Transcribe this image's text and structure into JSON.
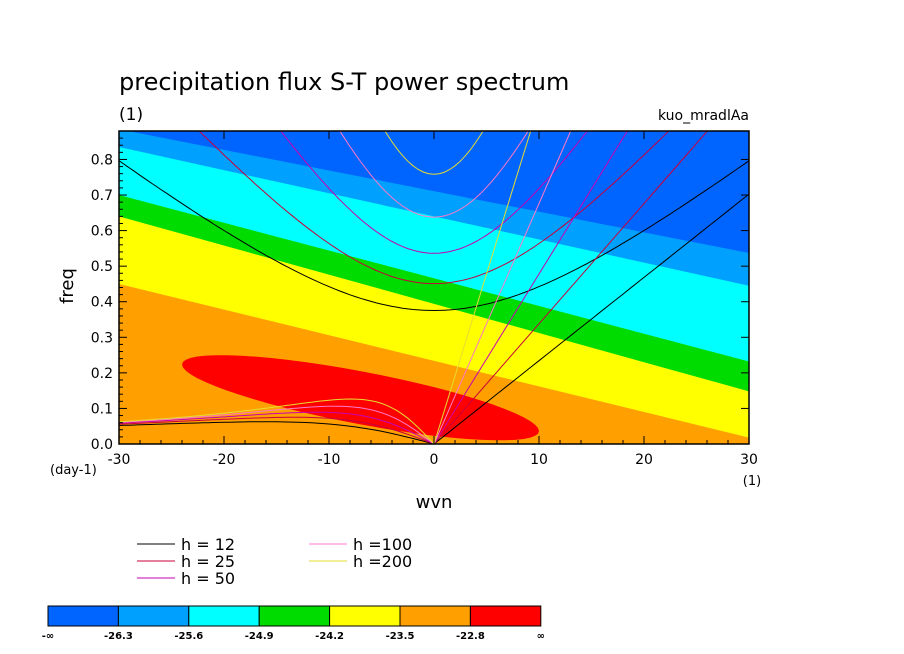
{
  "chart_data": {
    "type": "heatmap",
    "title": "precipitation flux S-T power spectrum",
    "title_unit": "(1)",
    "run_label": "kuo_mradlAa",
    "xlabel": "wvn",
    "ylabel": "freq",
    "x_unit": "(1)",
    "y_unit": "(day-1)",
    "xlim": [
      -30,
      30
    ],
    "ylim": [
      0,
      0.88
    ],
    "x_ticks": [
      -30,
      -20,
      -10,
      0,
      10,
      20,
      30
    ],
    "x_tick_labels": [
      "-30",
      "-20",
      "-10",
      "0",
      "10",
      "20",
      "30"
    ],
    "y_ticks": [
      0.0,
      0.1,
      0.2,
      0.3,
      0.4,
      0.5,
      0.6,
      0.7,
      0.8
    ],
    "y_tick_labels": [
      "0.0",
      "0.1",
      "0.2",
      "0.3",
      "0.4",
      "0.5",
      "0.6",
      "0.7",
      "0.8"
    ],
    "color_levels": [
      -26.3,
      -25.6,
      -24.9,
      -24.2,
      -23.5,
      -22.8
    ],
    "colorbar_labels": [
      "-∞",
      "-26.3",
      "-25.6",
      "-24.9",
      "-24.2",
      "-23.5",
      "-22.8",
      "∞"
    ],
    "colorbar_colors": [
      "#0064ff",
      "#00a0ff",
      "#00ffff",
      "#00dc00",
      "#ffff00",
      "#ffa000",
      "#ff0000"
    ],
    "contour_bands": [
      {
        "color": "#00a0ff",
        "left_y": 0.885,
        "slope": -0.0058
      },
      {
        "color": "#00ffff",
        "left_y": 0.835,
        "slope": -0.0065
      },
      {
        "color": "#00dc00",
        "left_y": 0.7,
        "slope": -0.0078
      },
      {
        "color": "#ffff00",
        "left_y": 0.64,
        "slope": -0.0082
      },
      {
        "color": "#ffa000",
        "left_y": 0.45,
        "slope": -0.0072
      }
    ],
    "max_region": {
      "color": "#ff0000",
      "center": [
        -7,
        0.13
      ],
      "half_width": 17,
      "half_height": 0.075,
      "tilt": -0.0055
    },
    "dispersion_curves": [
      {
        "label": "h = 12",
        "h": 12,
        "color": "#000000"
      },
      {
        "label": "h = 25",
        "h": 25,
        "color": "#c8003c"
      },
      {
        "label": "h = 50",
        "h": 50,
        "color": "#c800b4"
      },
      {
        "label": "h =100",
        "h": 100,
        "color": "#ff78c8"
      },
      {
        "label": "h =200",
        "h": 200,
        "color": "#e6dc32"
      }
    ]
  }
}
